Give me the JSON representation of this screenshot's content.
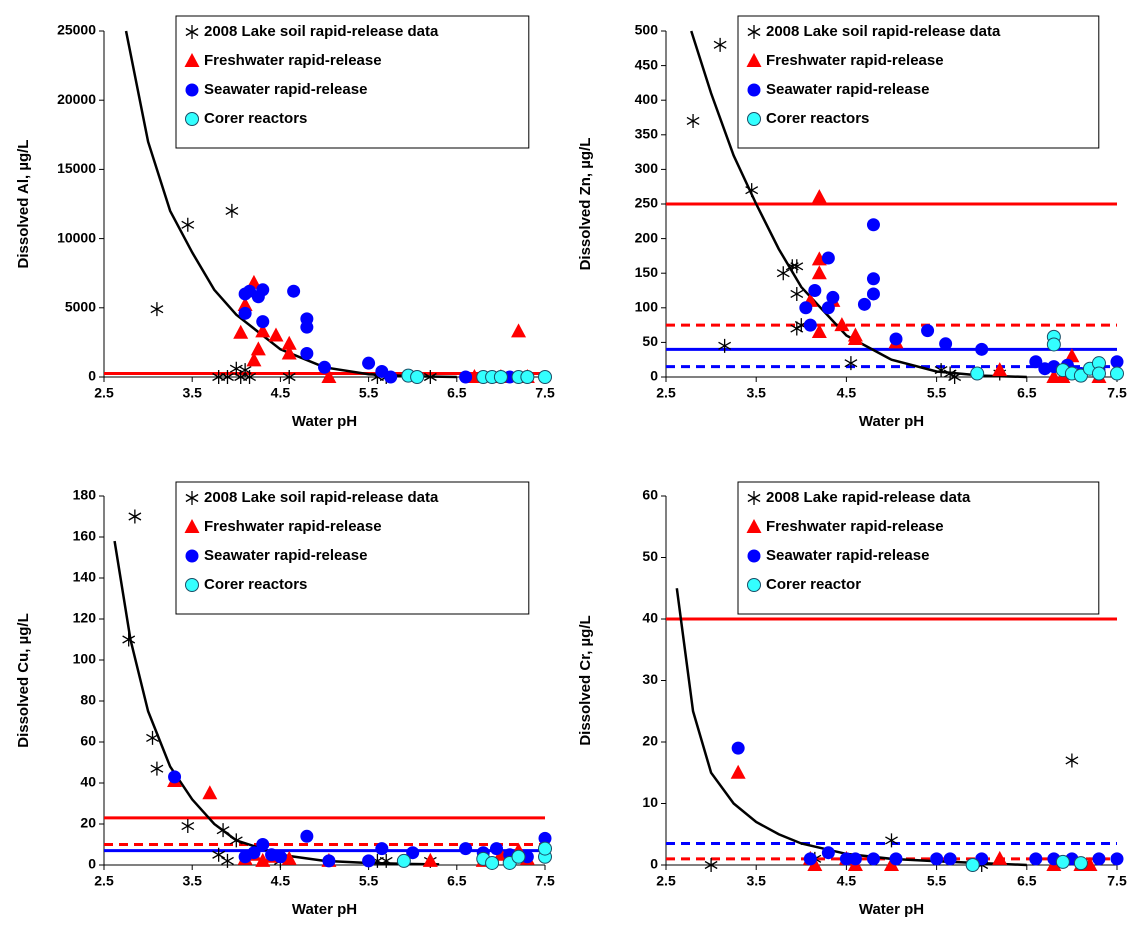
{
  "chart_data": [
    {
      "type": "scatter",
      "xlabel": "Water pH",
      "ylabel": "Dissolved Al, µg/L",
      "xlim": [
        2.5,
        7.5
      ],
      "xticks": [
        2.5,
        3.5,
        4.5,
        5.5,
        6.5,
        7.5
      ],
      "ylim": [
        0,
        25000
      ],
      "yticks": [
        0,
        5000,
        10000,
        15000,
        20000,
        25000
      ],
      "series": [
        {
          "name": "2008 Lake soil rapid-release data",
          "color": "#000000",
          "marker": "asterisk",
          "x": [
            3.1,
            3.45,
            3.95,
            3.8,
            3.9,
            4.0,
            4.1,
            4.15,
            4.05,
            4.6,
            5.6,
            5.7,
            6.2
          ],
          "values": [
            4900,
            11000,
            12000,
            0,
            0,
            600,
            500,
            0,
            0,
            0,
            0,
            0,
            0
          ]
        },
        {
          "name": "Freshwater rapid-release",
          "color": "#ff0000",
          "marker": "triangle",
          "x": [
            4.1,
            4.05,
            4.2,
            4.25,
            4.2,
            4.3,
            4.45,
            4.6,
            4.6,
            5.05,
            6.7,
            7.0,
            7.2,
            7.3
          ],
          "values": [
            5200,
            3200,
            6800,
            2000,
            1200,
            3300,
            3000,
            1700,
            2400,
            0,
            0,
            0,
            3300,
            0
          ]
        },
        {
          "name": "Seawater rapid-release",
          "color": "#0000ff",
          "marker": "circle",
          "x": [
            4.1,
            4.15,
            4.25,
            4.3,
            4.1,
            4.3,
            4.65,
            4.8,
            4.8,
            4.8,
            5.0,
            5.5,
            5.65,
            5.75,
            6.6,
            6.9,
            7.1,
            7.3,
            7.5
          ],
          "values": [
            6000,
            6200,
            5800,
            6300,
            4600,
            4000,
            6200,
            4200,
            3600,
            1700,
            700,
            1000,
            400,
            0,
            0,
            0,
            0,
            0,
            0
          ]
        },
        {
          "name": "Corer reactors",
          "color": "#33ffff",
          "marker": "circle",
          "x": [
            5.95,
            6.05,
            6.8,
            6.9,
            7.0,
            7.2,
            7.3,
            7.5
          ],
          "values": [
            100,
            0,
            0,
            0,
            0,
            0,
            0,
            0
          ]
        }
      ],
      "fit_curve": {
        "color": "#000000",
        "x": [
          2.75,
          3.0,
          3.25,
          3.5,
          3.75,
          4.0,
          4.5,
          5.0,
          5.5,
          6.0,
          6.5
        ],
        "values": [
          25000,
          17000,
          12000,
          9000,
          6300,
          4500,
          2000,
          700,
          200,
          50,
          0
        ]
      },
      "reference_lines": [
        {
          "value": 250,
          "color": "#ff0000",
          "dash": false
        }
      ]
    },
    {
      "type": "scatter",
      "xlabel": "Water pH",
      "ylabel": "Dissolved Zn, µg/L",
      "xlim": [
        2.5,
        7.5
      ],
      "xticks": [
        2.5,
        3.5,
        4.5,
        5.5,
        6.5,
        7.5
      ],
      "ylim": [
        0,
        500
      ],
      "yticks": [
        0,
        50,
        100,
        150,
        200,
        250,
        300,
        350,
        400,
        450,
        500
      ],
      "series": [
        {
          "name": "2008 Lake soil rapid-release data",
          "color": "#000000",
          "marker": "asterisk",
          "x": [
            2.8,
            3.1,
            3.45,
            3.8,
            3.9,
            3.95,
            3.95,
            3.95,
            3.15,
            4.0,
            4.55,
            5.55,
            5.65,
            5.7,
            6.2
          ],
          "values": [
            370,
            480,
            270,
            150,
            160,
            160,
            120,
            70,
            45,
            75,
            20,
            10,
            5,
            0,
            5
          ]
        },
        {
          "name": "Freshwater rapid-release",
          "color": "#ff0000",
          "marker": "triangle",
          "x": [
            4.2,
            4.2,
            4.2,
            4.1,
            4.35,
            4.2,
            4.45,
            4.6,
            4.6,
            5.05,
            6.2,
            6.8,
            6.9,
            7.0,
            7.3
          ],
          "values": [
            260,
            170,
            150,
            110,
            110,
            65,
            75,
            60,
            55,
            50,
            10,
            0,
            0,
            30,
            0
          ]
        },
        {
          "name": "Seawater rapid-release",
          "color": "#0000ff",
          "marker": "circle",
          "x": [
            4.3,
            4.15,
            4.05,
            4.1,
            4.3,
            4.35,
            4.8,
            4.8,
            4.8,
            4.7,
            5.05,
            5.4,
            5.6,
            6.0,
            6.6,
            6.7,
            6.8,
            6.95,
            7.1,
            7.3,
            7.5
          ],
          "values": [
            172,
            125,
            100,
            75,
            100,
            115,
            220,
            142,
            120,
            105,
            55,
            67,
            48,
            40,
            22,
            12,
            15,
            17,
            5,
            10,
            22
          ]
        },
        {
          "name": "Corer reactors",
          "color": "#33ffff",
          "marker": "circle",
          "x": [
            5.95,
            6.8,
            6.8,
            6.9,
            7.0,
            7.1,
            7.2,
            7.3,
            7.3,
            7.5
          ],
          "values": [
            5,
            58,
            47,
            10,
            5,
            2,
            12,
            20,
            5,
            5
          ]
        }
      ],
      "fit_curve": {
        "color": "#000000",
        "x": [
          2.78,
          3.0,
          3.25,
          3.5,
          3.75,
          4.0,
          4.5,
          5.0,
          5.5,
          6.0,
          6.5
        ],
        "values": [
          500,
          410,
          320,
          250,
          185,
          130,
          60,
          25,
          8,
          2,
          0
        ]
      },
      "reference_lines": [
        {
          "value": 250,
          "color": "#ff0000",
          "dash": false
        },
        {
          "value": 75,
          "color": "#ff0000",
          "dash": true
        },
        {
          "value": 40,
          "color": "#0000ff",
          "dash": false
        },
        {
          "value": 15,
          "color": "#0000ff",
          "dash": true
        }
      ]
    },
    {
      "type": "scatter",
      "xlabel": "Water pH",
      "ylabel": "Dissolved Cu, µg/L",
      "xlim": [
        2.5,
        7.5
      ],
      "xticks": [
        2.5,
        3.5,
        4.5,
        5.5,
        6.5,
        7.5
      ],
      "ylim": [
        0,
        180
      ],
      "yticks": [
        0,
        20,
        40,
        60,
        80,
        100,
        120,
        140,
        160,
        180
      ],
      "series": [
        {
          "name": "2008 Lake soil rapid-release data",
          "color": "#000000",
          "marker": "asterisk",
          "x": [
            2.85,
            2.78,
            3.05,
            3.1,
            3.45,
            3.85,
            3.8,
            4.0,
            3.9,
            4.5,
            5.6,
            5.7,
            6.2
          ],
          "values": [
            170,
            110,
            62,
            47,
            19,
            17,
            5,
            12,
            2,
            2,
            2,
            2,
            2
          ]
        },
        {
          "name": "Freshwater rapid-release",
          "color": "#ff0000",
          "marker": "triangle",
          "x": [
            3.3,
            3.7,
            4.1,
            4.2,
            4.3,
            4.4,
            4.6,
            5.05,
            6.2,
            6.8,
            7.0,
            7.2,
            7.3
          ],
          "values": [
            41,
            35,
            3,
            5,
            2,
            4,
            3,
            2,
            2,
            2,
            5,
            7,
            3
          ]
        },
        {
          "name": "Seawater rapid-release",
          "color": "#0000ff",
          "marker": "circle",
          "x": [
            3.3,
            4.1,
            4.2,
            4.3,
            4.4,
            4.5,
            4.8,
            5.05,
            5.5,
            5.65,
            6.0,
            6.6,
            6.8,
            6.95,
            7.1,
            7.3,
            7.5
          ],
          "values": [
            43,
            4,
            6,
            10,
            5,
            4,
            14,
            2,
            2,
            8,
            6,
            8,
            6,
            8,
            5,
            4,
            13
          ]
        },
        {
          "name": "Corer reactors",
          "color": "#33ffff",
          "marker": "circle",
          "x": [
            5.9,
            6.8,
            6.9,
            7.1,
            7.2,
            7.5,
            7.5
          ],
          "values": [
            2,
            3,
            1,
            1,
            4,
            4,
            8
          ]
        }
      ],
      "fit_curve": {
        "color": "#000000",
        "x": [
          2.62,
          2.8,
          3.0,
          3.25,
          3.5,
          3.75,
          4.0,
          4.5,
          5.0,
          5.5,
          6.0,
          6.3
        ],
        "values": [
          158,
          110,
          75,
          48,
          32,
          20,
          12,
          5,
          2,
          1,
          0.5,
          0.3
        ]
      },
      "reference_lines": [
        {
          "value": 23,
          "color": "#ff0000",
          "dash": false
        },
        {
          "value": 10,
          "color": "#ff0000",
          "dash": true
        },
        {
          "value": 7,
          "color": "#0000ff",
          "dash": false
        }
      ]
    },
    {
      "type": "scatter",
      "xlabel": "Water pH",
      "ylabel": "Dissolved Cr, µg/L",
      "xlim": [
        2.5,
        7.5
      ],
      "xticks": [
        2.5,
        3.5,
        4.5,
        5.5,
        6.5,
        7.5
      ],
      "ylim": [
        0,
        60
      ],
      "yticks": [
        0,
        10,
        20,
        30,
        40,
        50,
        60
      ],
      "series": [
        {
          "name": "2008 Lake rapid-release data",
          "color": "#000000",
          "marker": "asterisk",
          "x": [
            3.0,
            4.15,
            5.0,
            6.0,
            7.0
          ],
          "values": [
            0,
            1,
            4,
            0,
            17
          ]
        },
        {
          "name": "Freshwater rapid-release",
          "color": "#ff0000",
          "marker": "triangle",
          "x": [
            3.3,
            4.1,
            4.15,
            4.5,
            4.6,
            5.0,
            6.2,
            6.8,
            7.1,
            7.2
          ],
          "values": [
            15,
            1,
            0,
            1,
            0,
            0,
            1,
            0,
            0,
            0
          ]
        },
        {
          "name": "Seawater rapid-release",
          "color": "#0000ff",
          "marker": "circle",
          "x": [
            3.3,
            4.1,
            4.3,
            4.5,
            4.6,
            4.8,
            5.05,
            5.5,
            5.65,
            6.0,
            6.6,
            6.8,
            7.0,
            7.3,
            7.5
          ],
          "values": [
            19,
            1,
            2,
            1,
            1,
            1,
            1,
            1,
            1,
            1,
            1,
            1,
            1,
            1,
            1
          ]
        },
        {
          "name": "Corer reactor",
          "color": "#33ffff",
          "marker": "circle",
          "x": [
            5.9,
            6.9,
            7.1
          ],
          "values": [
            0,
            0.5,
            0.3
          ]
        }
      ],
      "fit_curve": {
        "color": "#000000",
        "x": [
          2.62,
          2.8,
          3.0,
          3.25,
          3.5,
          3.75,
          4.0,
          4.5,
          5.0,
          5.5,
          6.0,
          6.5
        ],
        "values": [
          45,
          25,
          15,
          10,
          7,
          5,
          3.5,
          1.8,
          1,
          0.6,
          0.3,
          0
        ]
      },
      "reference_lines": [
        {
          "value": 40,
          "color": "#ff0000",
          "dash": false
        },
        {
          "value": 3.5,
          "color": "#0000ff",
          "dash": true
        },
        {
          "value": 1,
          "color": "#ff0000",
          "dash": true
        }
      ]
    }
  ]
}
